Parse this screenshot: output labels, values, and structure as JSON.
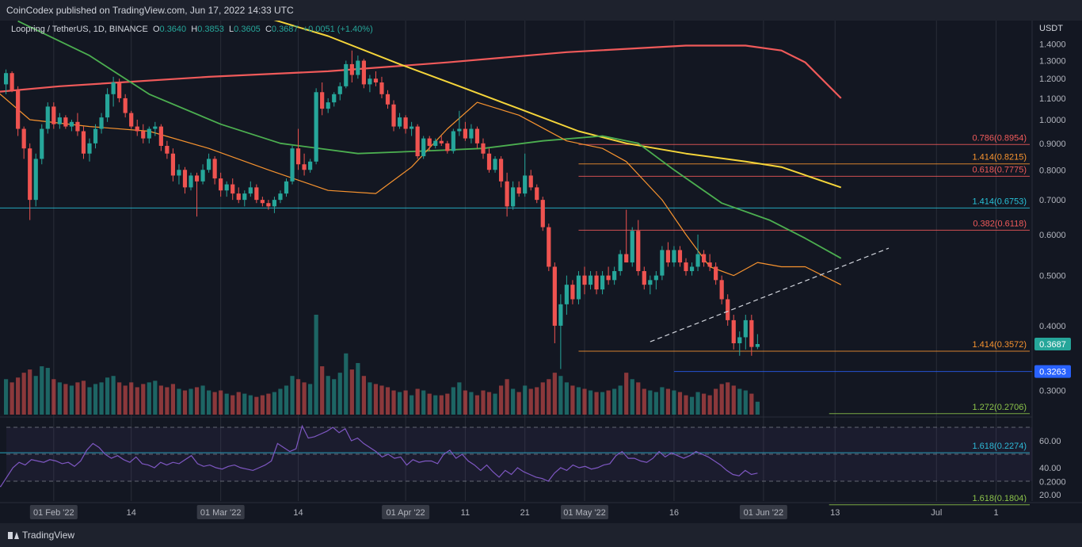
{
  "header": {
    "publisher_line": "CoinCodex published on TradingView.com, Jun 17, 2022 14:33 UTC"
  },
  "symbol": {
    "name": "Loopring / TetherUS, 1D, BINANCE",
    "open_label": "O",
    "open": "0.3640",
    "high_label": "H",
    "high": "0.3853",
    "low_label": "L",
    "low": "0.3605",
    "close_label": "C",
    "close": "0.3687",
    "change": "+0.0051 (+1.40%)"
  },
  "footer": {
    "brand": "TradingView"
  },
  "colors": {
    "background": "#131722",
    "up": "#26a69a",
    "down": "#ef5350",
    "ma_red": "#f05a5a",
    "ma_yellow": "#f5d53a",
    "ma_green": "#4caf50",
    "ma_orange": "#f7932f",
    "rsi": "#7e57c2",
    "fib_red": "#f05a5a",
    "fib_orange": "#f7932f",
    "fib_cyan": "#27c1d8",
    "fib_green": "#8bc34a"
  },
  "chart_data": {
    "type": "candlestick",
    "y_axis_unit": "USDT",
    "y_scale": "log",
    "ylim": [
      0.29,
      1.6
    ],
    "y_ticks": [
      "1.4000",
      "1.3000",
      "1.2000",
      "1.1000",
      "1.0000",
      "0.9000",
      "0.8000",
      "0.7000",
      "0.6000",
      "0.5000",
      "0.4000",
      "0.3000",
      "0.2000"
    ],
    "y_tick_values": [
      1.4,
      1.3,
      1.2,
      1.1,
      1.0,
      0.9,
      0.8,
      0.7,
      0.6,
      0.5,
      0.4,
      0.3,
      0.2
    ],
    "x_ticks": [
      "01 Feb '22",
      "14",
      "01 Mar '22",
      "14",
      "01 Apr '22",
      "11",
      "21",
      "01 May '22",
      "16",
      "01 Jun '22",
      "13",
      "Jul",
      "1"
    ],
    "x_tick_days": [
      -6,
      7,
      22,
      35,
      53,
      63,
      73,
      83,
      98,
      113,
      125,
      142,
      152
    ],
    "x_ticks_boxed": [
      "01 Feb '22",
      "01 Mar '22",
      "01 Apr '22",
      "01 May '22",
      "01 Jun '22"
    ],
    "candles": [
      [
        1.17,
        1.25,
        1.12,
        1.23
      ],
      [
        1.23,
        1.24,
        1.13,
        1.14
      ],
      [
        1.14,
        1.16,
        0.93,
        0.96
      ],
      [
        0.96,
        0.97,
        0.84,
        0.88
      ],
      [
        0.88,
        0.9,
        0.64,
        0.7
      ],
      [
        0.7,
        0.86,
        0.68,
        0.84
      ],
      [
        0.84,
        0.98,
        0.82,
        0.96
      ],
      [
        0.96,
        1.08,
        0.94,
        1.06
      ],
      [
        1.06,
        1.08,
        0.96,
        0.98
      ],
      [
        0.98,
        1.03,
        0.96,
        1.01
      ],
      [
        1.01,
        1.02,
        0.96,
        0.97
      ],
      [
        0.97,
        1.0,
        0.95,
        0.99
      ],
      [
        0.99,
        1.03,
        0.93,
        0.95
      ],
      [
        0.95,
        0.97,
        0.84,
        0.86
      ],
      [
        0.86,
        0.92,
        0.83,
        0.9
      ],
      [
        0.9,
        0.98,
        0.88,
        0.96
      ],
      [
        0.96,
        1.03,
        0.94,
        1.01
      ],
      [
        1.01,
        1.15,
        0.99,
        1.12
      ],
      [
        1.12,
        1.21,
        1.06,
        1.18
      ],
      [
        1.18,
        1.2,
        1.08,
        1.1
      ],
      [
        1.1,
        1.12,
        1.01,
        1.03
      ],
      [
        1.03,
        1.04,
        0.96,
        0.97
      ],
      [
        0.97,
        1.0,
        0.93,
        0.95
      ],
      [
        0.95,
        0.98,
        0.9,
        0.92
      ],
      [
        0.92,
        0.97,
        0.9,
        0.96
      ],
      [
        0.96,
        0.99,
        0.93,
        0.97
      ],
      [
        0.97,
        0.98,
        0.87,
        0.89
      ],
      [
        0.89,
        0.91,
        0.84,
        0.86
      ],
      [
        0.86,
        0.88,
        0.76,
        0.78
      ],
      [
        0.78,
        0.82,
        0.75,
        0.8
      ],
      [
        0.8,
        0.81,
        0.72,
        0.74
      ],
      [
        0.74,
        0.79,
        0.73,
        0.78
      ],
      [
        0.78,
        0.79,
        0.65,
        0.76
      ],
      [
        0.76,
        0.82,
        0.75,
        0.8
      ],
      [
        0.8,
        0.86,
        0.79,
        0.84
      ],
      [
        0.84,
        0.85,
        0.75,
        0.77
      ],
      [
        0.77,
        0.79,
        0.71,
        0.73
      ],
      [
        0.73,
        0.76,
        0.71,
        0.75
      ],
      [
        0.75,
        0.77,
        0.7,
        0.72
      ],
      [
        0.72,
        0.74,
        0.69,
        0.7
      ],
      [
        0.7,
        0.73,
        0.68,
        0.72
      ],
      [
        0.72,
        0.76,
        0.71,
        0.74
      ],
      [
        0.74,
        0.75,
        0.69,
        0.7
      ],
      [
        0.7,
        0.71,
        0.68,
        0.69
      ],
      [
        0.69,
        0.7,
        0.67,
        0.68
      ],
      [
        0.68,
        0.71,
        0.66,
        0.7
      ],
      [
        0.7,
        0.73,
        0.69,
        0.72
      ],
      [
        0.72,
        0.77,
        0.71,
        0.76
      ],
      [
        0.76,
        0.89,
        0.75,
        0.88
      ],
      [
        0.88,
        0.96,
        0.8,
        0.82
      ],
      [
        0.82,
        0.86,
        0.78,
        0.8
      ],
      [
        0.8,
        0.84,
        0.79,
        0.83
      ],
      [
        0.83,
        1.15,
        0.82,
        1.13
      ],
      [
        1.13,
        1.18,
        1.02,
        1.05
      ],
      [
        1.05,
        1.1,
        1.03,
        1.08
      ],
      [
        1.08,
        1.13,
        1.06,
        1.12
      ],
      [
        1.12,
        1.18,
        1.09,
        1.16
      ],
      [
        1.16,
        1.3,
        1.15,
        1.28
      ],
      [
        1.28,
        1.36,
        1.18,
        1.22
      ],
      [
        1.22,
        1.33,
        1.2,
        1.3
      ],
      [
        1.3,
        1.31,
        1.15,
        1.17
      ],
      [
        1.17,
        1.22,
        1.13,
        1.2
      ],
      [
        1.2,
        1.24,
        1.16,
        1.18
      ],
      [
        1.18,
        1.21,
        1.1,
        1.12
      ],
      [
        1.12,
        1.14,
        1.05,
        1.07
      ],
      [
        1.07,
        1.09,
        0.95,
        0.97
      ],
      [
        0.97,
        1.03,
        0.96,
        1.01
      ],
      [
        1.01,
        1.02,
        0.94,
        0.96
      ],
      [
        0.96,
        0.99,
        0.93,
        0.97
      ],
      [
        0.97,
        0.98,
        0.84,
        0.85
      ],
      [
        0.85,
        0.93,
        0.84,
        0.92
      ],
      [
        0.92,
        0.93,
        0.87,
        0.89
      ],
      [
        0.89,
        0.92,
        0.88,
        0.91
      ],
      [
        0.91,
        0.93,
        0.89,
        0.9
      ],
      [
        0.9,
        0.91,
        0.86,
        0.87
      ],
      [
        0.87,
        0.96,
        0.86,
        0.95
      ],
      [
        0.95,
        1.04,
        0.93,
        0.96
      ],
      [
        0.96,
        0.99,
        0.91,
        0.92
      ],
      [
        0.92,
        0.98,
        0.9,
        0.96
      ],
      [
        0.96,
        0.97,
        0.88,
        0.9
      ],
      [
        0.9,
        0.92,
        0.84,
        0.86
      ],
      [
        0.86,
        0.88,
        0.79,
        0.8
      ],
      [
        0.8,
        0.85,
        0.79,
        0.84
      ],
      [
        0.84,
        0.85,
        0.74,
        0.76
      ],
      [
        0.76,
        0.79,
        0.65,
        0.68
      ],
      [
        0.68,
        0.76,
        0.67,
        0.74
      ],
      [
        0.74,
        0.76,
        0.71,
        0.72
      ],
      [
        0.72,
        0.86,
        0.71,
        0.78
      ],
      [
        0.78,
        0.8,
        0.73,
        0.74
      ],
      [
        0.74,
        0.75,
        0.69,
        0.7
      ],
      [
        0.7,
        0.71,
        0.61,
        0.62
      ],
      [
        0.62,
        0.63,
        0.51,
        0.52
      ],
      [
        0.52,
        0.53,
        0.37,
        0.4
      ],
      [
        0.4,
        0.46,
        0.33,
        0.44
      ],
      [
        0.44,
        0.5,
        0.42,
        0.48
      ],
      [
        0.48,
        0.49,
        0.44,
        0.45
      ],
      [
        0.45,
        0.51,
        0.44,
        0.5
      ],
      [
        0.5,
        0.52,
        0.46,
        0.48
      ],
      [
        0.48,
        0.51,
        0.47,
        0.5
      ],
      [
        0.5,
        0.51,
        0.46,
        0.47
      ],
      [
        0.47,
        0.51,
        0.46,
        0.5
      ],
      [
        0.5,
        0.52,
        0.48,
        0.49
      ],
      [
        0.49,
        0.52,
        0.48,
        0.51
      ],
      [
        0.51,
        0.56,
        0.5,
        0.55
      ],
      [
        0.55,
        0.67,
        0.53,
        0.53
      ],
      [
        0.53,
        0.62,
        0.52,
        0.61
      ],
      [
        0.61,
        0.64,
        0.5,
        0.51
      ],
      [
        0.51,
        0.52,
        0.47,
        0.48
      ],
      [
        0.48,
        0.5,
        0.46,
        0.49
      ],
      [
        0.49,
        0.51,
        0.47,
        0.5
      ],
      [
        0.5,
        0.57,
        0.49,
        0.56
      ],
      [
        0.56,
        0.58,
        0.52,
        0.53
      ],
      [
        0.53,
        0.57,
        0.52,
        0.56
      ],
      [
        0.56,
        0.57,
        0.52,
        0.53
      ],
      [
        0.53,
        0.54,
        0.5,
        0.51
      ],
      [
        0.51,
        0.53,
        0.5,
        0.52
      ],
      [
        0.52,
        0.6,
        0.51,
        0.55
      ],
      [
        0.55,
        0.56,
        0.52,
        0.53
      ],
      [
        0.53,
        0.55,
        0.51,
        0.52
      ],
      [
        0.52,
        0.53,
        0.48,
        0.49
      ],
      [
        0.49,
        0.5,
        0.44,
        0.45
      ],
      [
        0.45,
        0.46,
        0.4,
        0.41
      ],
      [
        0.41,
        0.42,
        0.36,
        0.37
      ],
      [
        0.37,
        0.39,
        0.35,
        0.38
      ],
      [
        0.38,
        0.42,
        0.36,
        0.41
      ],
      [
        0.41,
        0.42,
        0.35,
        0.364
      ],
      [
        0.364,
        0.3853,
        0.3605,
        0.3687
      ]
    ],
    "volume": [
      0.22,
      0.2,
      0.23,
      0.26,
      0.28,
      0.24,
      0.3,
      0.29,
      0.22,
      0.2,
      0.19,
      0.18,
      0.2,
      0.21,
      0.17,
      0.19,
      0.2,
      0.23,
      0.24,
      0.2,
      0.18,
      0.2,
      0.17,
      0.19,
      0.2,
      0.21,
      0.18,
      0.17,
      0.19,
      0.16,
      0.15,
      0.16,
      0.17,
      0.18,
      0.15,
      0.14,
      0.15,
      0.13,
      0.12,
      0.14,
      0.13,
      0.12,
      0.11,
      0.12,
      0.13,
      0.14,
      0.16,
      0.18,
      0.24,
      0.22,
      0.2,
      0.19,
      0.62,
      0.3,
      0.24,
      0.22,
      0.26,
      0.38,
      0.28,
      0.32,
      0.24,
      0.2,
      0.19,
      0.18,
      0.17,
      0.15,
      0.14,
      0.15,
      0.12,
      0.16,
      0.15,
      0.13,
      0.12,
      0.12,
      0.13,
      0.17,
      0.2,
      0.15,
      0.14,
      0.12,
      0.15,
      0.14,
      0.13,
      0.18,
      0.22,
      0.16,
      0.14,
      0.18,
      0.16,
      0.17,
      0.2,
      0.22,
      0.26,
      0.24,
      0.2,
      0.18,
      0.17,
      0.16,
      0.15,
      0.14,
      0.14,
      0.15,
      0.16,
      0.18,
      0.26,
      0.22,
      0.2,
      0.16,
      0.15,
      0.14,
      0.17,
      0.16,
      0.15,
      0.14,
      0.12,
      0.11,
      0.14,
      0.13,
      0.12,
      0.16,
      0.19,
      0.2,
      0.18,
      0.16,
      0.15,
      0.13,
      0.08
    ],
    "price_tags": [
      "0.3687",
      "0.3263"
    ],
    "price_tag_values": [
      0.3687,
      0.3263
    ],
    "fib_levels": [
      {
        "label": "0.786(0.8954)",
        "value": 0.8954,
        "color": "fib_red",
        "start_day": 82
      },
      {
        "label": "1.414(0.8215)",
        "value": 0.8215,
        "color": "fib_orange",
        "start_day": 82
      },
      {
        "label": "0.618(0.7775)",
        "value": 0.7775,
        "color": "fib_red",
        "start_day": 82
      },
      {
        "label": "1.414(0.6753)",
        "value": 0.6753,
        "color": "fib_cyan",
        "start_day": -27
      },
      {
        "label": "0.382(0.6118)",
        "value": 0.6118,
        "color": "fib_red",
        "start_day": 82
      },
      {
        "label": "1.414(0.3572)",
        "value": 0.3572,
        "color": "fib_orange",
        "start_day": 82
      },
      {
        "label": "1.272(0.2706)",
        "value": 0.2706,
        "color": "fib_green",
        "start_day": 124
      },
      {
        "label": "1.618(0.2274)",
        "value": 0.2274,
        "color": "fib_cyan",
        "start_day": -27
      },
      {
        "label": "1.618(0.1804)",
        "value": 0.1804,
        "color": "fib_green",
        "start_day": 124
      }
    ],
    "trendline": {
      "start_day": 94,
      "start_value": 0.3725,
      "end_day": 134,
      "end_value": 0.5648
    },
    "ma_200": {
      "start_day": -27,
      "end_day": 126,
      "anchors": [
        [
          -27,
          1.1
        ],
        [
          -5,
          1.16
        ],
        [
          20,
          1.21
        ],
        [
          40,
          1.24
        ],
        [
          60,
          1.29
        ],
        [
          80,
          1.35
        ],
        [
          100,
          1.39
        ],
        [
          110,
          1.39
        ],
        [
          116,
          1.36
        ],
        [
          120,
          1.29
        ],
        [
          126,
          1.1
        ]
      ]
    },
    "ma_100": {
      "start_day": 20,
      "end_day": 126,
      "anchors": [
        [
          20,
          1.7
        ],
        [
          40,
          1.45
        ],
        [
          52,
          1.28
        ],
        [
          62,
          1.16
        ],
        [
          72,
          1.05
        ],
        [
          82,
          0.95
        ],
        [
          90,
          0.9
        ],
        [
          100,
          0.86
        ],
        [
          110,
          0.83
        ],
        [
          116,
          0.81
        ],
        [
          126,
          0.74
        ]
      ]
    },
    "ma_50": {
      "start_day": -12,
      "end_day": 126,
      "anchors": [
        [
          -12,
          1.55
        ],
        [
          0,
          1.33
        ],
        [
          10,
          1.12
        ],
        [
          22,
          0.98
        ],
        [
          32,
          0.9
        ],
        [
          45,
          0.86
        ],
        [
          56,
          0.87
        ],
        [
          66,
          0.88
        ],
        [
          76,
          0.91
        ],
        [
          86,
          0.93
        ],
        [
          92,
          0.9
        ],
        [
          98,
          0.8
        ],
        [
          106,
          0.69
        ],
        [
          114,
          0.64
        ],
        [
          120,
          0.59
        ],
        [
          126,
          0.54
        ]
      ]
    },
    "ma_20": {
      "start_day": -27,
      "end_day": 126,
      "anchors": [
        [
          -27,
          1.25
        ],
        [
          -18,
          1.2
        ],
        [
          -10,
          1.0
        ],
        [
          0,
          0.97
        ],
        [
          10,
          0.95
        ],
        [
          20,
          0.88
        ],
        [
          30,
          0.8
        ],
        [
          40,
          0.73
        ],
        [
          48,
          0.72
        ],
        [
          54,
          0.81
        ],
        [
          60,
          0.96
        ],
        [
          65,
          1.08
        ],
        [
          72,
          1.02
        ],
        [
          80,
          0.91
        ],
        [
          86,
          0.88
        ],
        [
          90,
          0.83
        ],
        [
          96,
          0.7
        ],
        [
          100,
          0.6
        ],
        [
          104,
          0.52
        ],
        [
          108,
          0.5
        ],
        [
          112,
          0.53
        ],
        [
          116,
          0.52
        ],
        [
          120,
          0.52
        ],
        [
          126,
          0.48
        ]
      ]
    },
    "rsi": {
      "y_ticks": [
        "60.00",
        "40.00",
        "20.00"
      ],
      "y_tick_values": [
        60,
        40,
        20
      ],
      "bands": [
        30,
        50,
        70
      ],
      "ylim": [
        10,
        80
      ],
      "values": [
        32,
        30,
        28,
        26,
        33,
        40,
        44,
        42,
        46,
        45,
        44,
        46,
        45,
        43,
        44,
        41,
        45,
        53,
        58,
        55,
        50,
        47,
        49,
        46,
        44,
        48,
        43,
        42,
        40,
        44,
        42,
        44,
        43,
        46,
        49,
        43,
        41,
        42,
        40,
        39,
        41,
        42,
        40,
        39,
        38,
        40,
        42,
        45,
        58,
        55,
        52,
        54,
        71,
        62,
        63,
        65,
        67,
        70,
        66,
        69,
        60,
        62,
        58,
        55,
        52,
        48,
        50,
        47,
        48,
        42,
        46,
        44,
        45,
        45,
        43,
        50,
        53,
        47,
        50,
        45,
        42,
        38,
        42,
        37,
        33,
        38,
        35,
        40,
        37,
        35,
        33,
        32,
        30,
        36,
        40,
        38,
        42,
        40,
        41,
        39,
        40,
        42,
        43,
        49,
        52,
        47,
        47,
        45,
        44,
        47,
        52,
        48,
        51,
        49,
        47,
        49,
        52,
        50,
        48,
        45,
        42,
        38,
        35,
        34,
        38,
        35,
        36
      ]
    }
  }
}
